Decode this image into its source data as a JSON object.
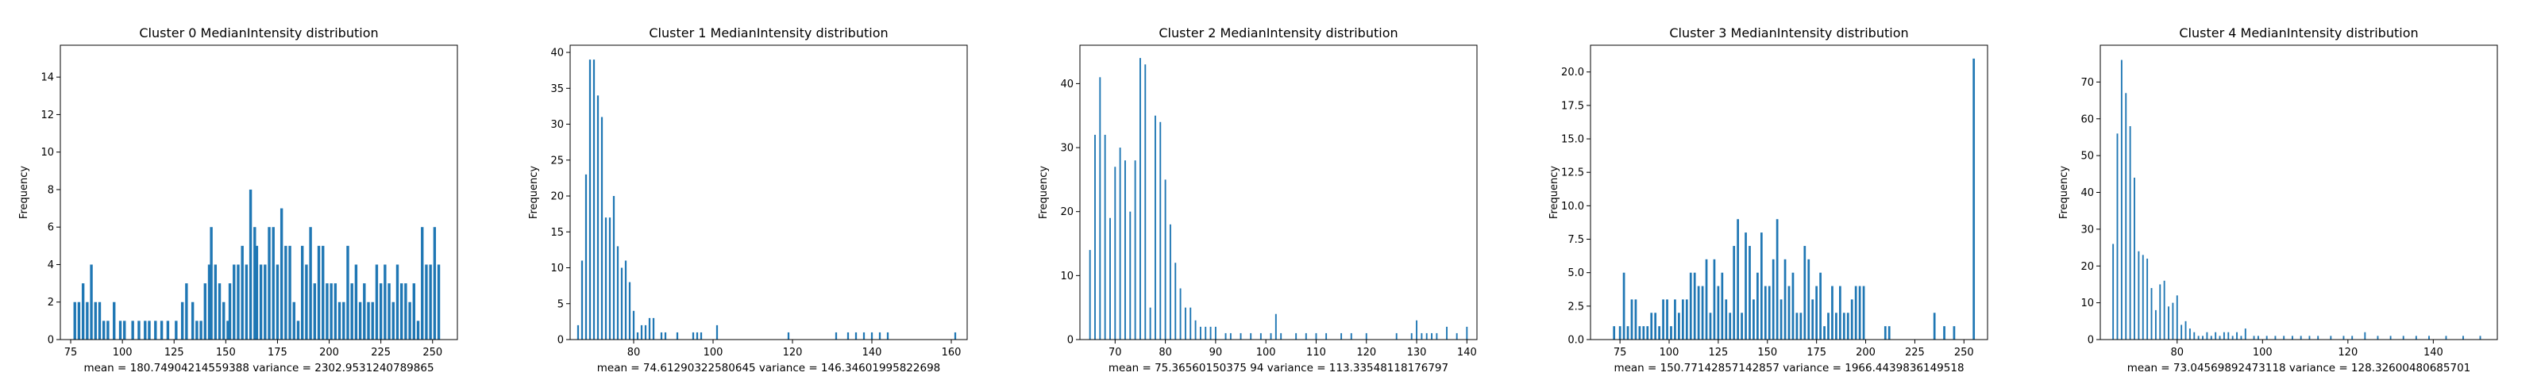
{
  "bar_color": "#1f77b4",
  "chart_data": [
    {
      "type": "bar",
      "title": "Cluster 0 MedianIntensity distribution",
      "xlabel": "",
      "ylabel": "Frequency",
      "xlim": [
        70,
        262
      ],
      "ylim": [
        0,
        15.7
      ],
      "xticks": [
        75,
        100,
        125,
        150,
        175,
        200,
        225,
        250
      ],
      "yticks": [
        0,
        2,
        4,
        6,
        8,
        10,
        12,
        14
      ],
      "stats": "mean = 180.74904214559388     variance = 2302.9531240789865",
      "bin_width": 1.3,
      "x": [
        77,
        79,
        81,
        83,
        85,
        87,
        89,
        91,
        93,
        96,
        99,
        101,
        105,
        108,
        111,
        113,
        116,
        119,
        122,
        126,
        129,
        131,
        134,
        136,
        138,
        140,
        142,
        143,
        145,
        147,
        149,
        151,
        152,
        154,
        156,
        158,
        160,
        162,
        164,
        165,
        167,
        169,
        171,
        173,
        175,
        177,
        179,
        181,
        183,
        185,
        187,
        189,
        191,
        193,
        195,
        197,
        199,
        201,
        203,
        205,
        207,
        209,
        211,
        213,
        215,
        217,
        219,
        221,
        223,
        225,
        227,
        229,
        231,
        233,
        235,
        237,
        239,
        241,
        243,
        245,
        247,
        249,
        251,
        253
      ],
      "values": [
        2,
        2,
        3,
        2,
        4,
        2,
        2,
        1,
        1,
        2,
        1,
        1,
        1,
        1,
        1,
        1,
        1,
        1,
        1,
        1,
        2,
        3,
        2,
        1,
        1,
        3,
        4,
        6,
        4,
        3,
        2,
        1,
        3,
        4,
        4,
        5,
        4,
        8,
        6,
        5,
        4,
        4,
        6,
        6,
        4,
        7,
        5,
        5,
        2,
        1,
        5,
        4,
        6,
        3,
        5,
        5,
        3,
        3,
        3,
        2,
        2,
        5,
        3,
        4,
        2,
        3,
        2,
        2,
        4,
        3,
        4,
        3,
        2,
        4,
        3,
        3,
        2,
        3,
        1,
        6,
        4,
        4,
        6,
        4
      ]
    },
    {
      "type": "bar",
      "title": "Cluster 1 MedianIntensity distribution",
      "xlabel": "",
      "ylabel": "Frequency",
      "xlim": [
        64,
        164
      ],
      "ylim": [
        0,
        41
      ],
      "xticks": [
        80,
        100,
        120,
        140,
        160
      ],
      "yticks": [
        0,
        5,
        10,
        15,
        20,
        25,
        30,
        35,
        40
      ],
      "stats": "mean = 74.61290322580645     variance = 146.34601995822698",
      "bin_width": 0.45,
      "x": [
        66,
        67,
        68,
        69,
        70,
        71,
        72,
        73,
        74,
        75,
        76,
        77,
        78,
        79,
        80,
        81,
        82,
        83,
        84,
        85,
        87,
        88,
        91,
        95,
        96,
        97,
        101,
        119,
        131,
        134,
        136,
        138,
        140,
        142,
        144,
        161
      ],
      "values": [
        2,
        11,
        23,
        39,
        39,
        34,
        31,
        17,
        17,
        20,
        13,
        10,
        11,
        8,
        4,
        1,
        2,
        2,
        3,
        3,
        1,
        1,
        1,
        1,
        1,
        1,
        2,
        1,
        1,
        1,
        1,
        1,
        1,
        1,
        1,
        1
      ]
    },
    {
      "type": "bar",
      "title": "Cluster 2 MedianIntensity distribution",
      "xlabel": "",
      "ylabel": "Frequency",
      "xlim": [
        63,
        142
      ],
      "ylim": [
        0,
        46
      ],
      "xticks": [
        70,
        80,
        90,
        100,
        110,
        120,
        130,
        140
      ],
      "yticks": [
        0,
        10,
        20,
        30,
        40
      ],
      "stats": "mean = 75.36560150375 94     variance = 113.33548118176797",
      "bin_width": 0.3,
      "x": [
        65,
        66,
        67,
        68,
        69,
        70,
        71,
        72,
        73,
        74,
        75,
        76,
        77,
        78,
        79,
        80,
        81,
        82,
        83,
        84,
        85,
        86,
        87,
        88,
        89,
        90,
        92,
        93,
        95,
        97,
        99,
        101,
        102,
        103,
        106,
        108,
        110,
        112,
        115,
        117,
        120,
        126,
        129,
        130,
        131,
        132,
        133,
        134,
        136,
        138,
        140
      ],
      "values": [
        14,
        32,
        41,
        32,
        19,
        27,
        30,
        28,
        20,
        28,
        44,
        43,
        5,
        35,
        34,
        25,
        18,
        12,
        8,
        5,
        5,
        3,
        2,
        2,
        2,
        2,
        1,
        1,
        1,
        1,
        1,
        1,
        4,
        1,
        1,
        1,
        1,
        1,
        1,
        1,
        1,
        1,
        1,
        3,
        1,
        1,
        1,
        1,
        2,
        1,
        2
      ]
    },
    {
      "type": "bar",
      "title": "Cluster 3 MedianIntensity distribution",
      "xlabel": "",
      "ylabel": "Frequency",
      "xlim": [
        60,
        262
      ],
      "ylim": [
        0,
        22
      ],
      "xticks": [
        75,
        100,
        125,
        150,
        175,
        200,
        225,
        250
      ],
      "yticks": [
        0,
        2.5,
        5.0,
        7.5,
        10.0,
        12.5,
        15.0,
        17.5,
        20.0
      ],
      "ytick_labels": [
        "0.0",
        "2.5",
        "5.0",
        "7.5",
        "10.0",
        "12.5",
        "15.0",
        "17.5",
        "20.0"
      ],
      "stats": "mean = 150.77142857142857     variance = 1966.4439836149518",
      "bin_width": 1.1,
      "x": [
        72,
        75,
        77,
        79,
        81,
        83,
        85,
        87,
        89,
        91,
        93,
        95,
        97,
        99,
        101,
        103,
        105,
        107,
        109,
        111,
        113,
        115,
        117,
        119,
        121,
        123,
        125,
        127,
        129,
        131,
        133,
        135,
        137,
        139,
        141,
        143,
        145,
        147,
        149,
        151,
        153,
        155,
        157,
        159,
        161,
        163,
        165,
        167,
        169,
        171,
        173,
        175,
        177,
        179,
        181,
        183,
        185,
        187,
        189,
        191,
        193,
        195,
        197,
        199,
        210,
        212,
        235,
        240,
        245,
        255
      ],
      "values": [
        1,
        1,
        5,
        1,
        3,
        3,
        1,
        1,
        1,
        2,
        2,
        1,
        3,
        3,
        1,
        3,
        2,
        3,
        3,
        5,
        5,
        4,
        4,
        6,
        2,
        6,
        4,
        5,
        3,
        2,
        7,
        9,
        2,
        8,
        7,
        3,
        5,
        8,
        4,
        4,
        6,
        9,
        3,
        6,
        4,
        5,
        2,
        2,
        7,
        6,
        3,
        4,
        5,
        1,
        2,
        4,
        2,
        4,
        2,
        2,
        3,
        4,
        4,
        4,
        1,
        1,
        2,
        1,
        1,
        21
      ]
    },
    {
      "type": "bar",
      "title": "Cluster 4 MedianIntensity distribution",
      "xlabel": "",
      "ylabel": "Frequency",
      "xlim": [
        62,
        155
      ],
      "ylim": [
        0,
        80
      ],
      "xticks": [
        80,
        100,
        120,
        140
      ],
      "yticks": [
        0,
        10,
        20,
        30,
        40,
        50,
        60,
        70
      ],
      "stats": "mean = 73.04569892473118     variance = 128.32600480685701",
      "bin_width": 0.35,
      "x": [
        65,
        66,
        67,
        68,
        69,
        70,
        71,
        72,
        73,
        74,
        75,
        76,
        77,
        78,
        79,
        80,
        81,
        82,
        83,
        84,
        85,
        86,
        87,
        88,
        89,
        90,
        91,
        92,
        93,
        94,
        95,
        96,
        98,
        99,
        101,
        103,
        105,
        107,
        109,
        111,
        113,
        116,
        119,
        121,
        124,
        127,
        130,
        133,
        136,
        139,
        143,
        147,
        151
      ],
      "values": [
        26,
        56,
        76,
        67,
        58,
        44,
        24,
        23,
        22,
        14,
        8,
        15,
        16,
        9,
        10,
        12,
        4,
        5,
        3,
        2,
        1,
        1,
        2,
        1,
        2,
        1,
        2,
        2,
        1,
        2,
        1,
        3,
        1,
        1,
        1,
        1,
        1,
        1,
        1,
        1,
        1,
        1,
        1,
        1,
        2,
        1,
        1,
        1,
        1,
        1,
        1,
        1,
        1
      ]
    }
  ]
}
